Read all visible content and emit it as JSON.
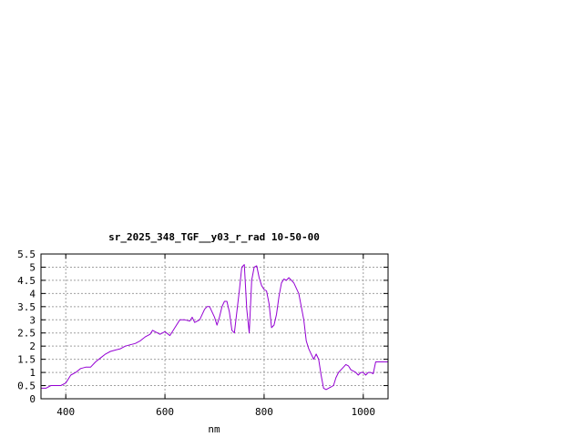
{
  "chart_data": {
    "type": "line",
    "title": "sr_2025_348_TGF__y03_r_rad 10-50-00",
    "xlabel": "nm",
    "ylabel": "",
    "xlim": [
      350,
      1050
    ],
    "ylim": [
      0,
      5.5
    ],
    "x_ticks": [
      400,
      600,
      800,
      1000
    ],
    "x_tick_labels": [
      "400",
      "600",
      "800",
      "1000"
    ],
    "y_ticks": [
      0,
      0.5,
      1,
      1.5,
      2,
      2.5,
      3,
      3.5,
      4,
      4.5,
      5,
      5.5
    ],
    "y_tick_labels": [
      "0",
      "0.5",
      "1",
      "1.5",
      "2",
      "2.5",
      "3",
      "3.5",
      "4",
      "4.5",
      "5",
      "5.5"
    ],
    "grid": true,
    "series_color": "#9400d3",
    "series": [
      {
        "x": [
          350,
          360,
          370,
          380,
          390,
          400,
          410,
          420,
          430,
          440,
          450,
          460,
          470,
          480,
          490,
          500,
          510,
          520,
          530,
          540,
          550,
          560,
          570,
          575,
          580,
          585,
          590,
          600,
          610,
          620,
          630,
          640,
          650,
          655,
          660,
          670,
          680,
          685,
          690,
          700,
          705,
          710,
          715,
          720,
          725,
          730,
          735,
          740,
          745,
          750,
          755,
          760,
          765,
          770,
          775,
          780,
          785,
          790,
          795,
          800,
          805,
          810,
          815,
          820,
          825,
          830,
          835,
          840,
          845,
          850,
          855,
          860,
          870,
          880,
          885,
          890,
          895,
          900,
          905,
          910,
          915,
          920,
          925,
          930,
          935,
          940,
          945,
          950,
          955,
          960,
          965,
          970,
          975,
          980,
          985,
          990,
          995,
          1000,
          1005,
          1010,
          1015,
          1020,
          1025,
          1030,
          1035,
          1040,
          1045,
          1050
        ],
        "values": [
          0.4,
          0.4,
          0.5,
          0.5,
          0.5,
          0.6,
          0.9,
          1.0,
          1.15,
          1.2,
          1.2,
          1.4,
          1.55,
          1.7,
          1.8,
          1.85,
          1.9,
          2.0,
          2.05,
          2.1,
          2.2,
          2.35,
          2.45,
          2.6,
          2.55,
          2.5,
          2.45,
          2.55,
          2.4,
          2.7,
          3.0,
          3.0,
          2.95,
          3.1,
          2.9,
          3.0,
          3.4,
          3.5,
          3.5,
          3.1,
          2.8,
          3.1,
          3.5,
          3.7,
          3.7,
          3.3,
          2.6,
          2.5,
          3.3,
          4.1,
          5.0,
          5.1,
          3.4,
          2.5,
          4.5,
          5.0,
          5.05,
          4.6,
          4.3,
          4.15,
          4.1,
          3.6,
          2.7,
          2.8,
          3.2,
          3.9,
          4.4,
          4.55,
          4.5,
          4.6,
          4.5,
          4.4,
          4.0,
          3.0,
          2.2,
          1.9,
          1.7,
          1.5,
          1.7,
          1.5,
          0.9,
          0.4,
          0.35,
          0.4,
          0.45,
          0.5,
          0.8,
          1.0,
          1.1,
          1.2,
          1.3,
          1.25,
          1.1,
          1.05,
          1.0,
          0.9,
          1.0,
          1.0,
          0.9,
          1.0,
          1.0,
          0.95,
          1.4,
          1.4,
          1.4,
          1.4,
          1.4,
          1.4
        ]
      }
    ]
  }
}
